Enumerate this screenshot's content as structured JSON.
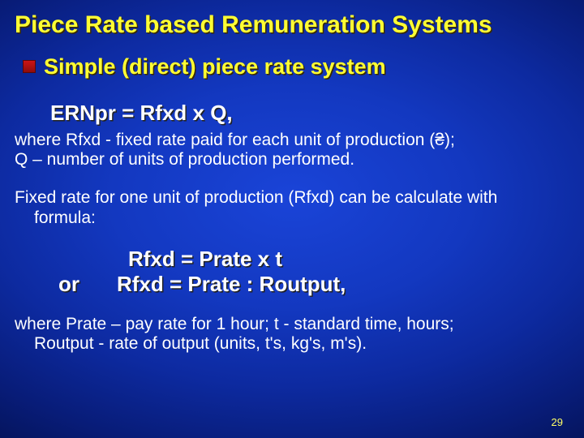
{
  "title": "Piece Rate based Remuneration Systems",
  "bullet_label": "Simple (direct) piece rate system",
  "formula_main": "ERNpr  =  Rfxd  x   Q,",
  "where1_line1": "where  Rfxd - fixed rate paid for each unit of production (₴);",
  "where1_line2": "Q – number of units of production performed.",
  "lead_in_line1": "Fixed rate for one unit of production (Rfxd) can be calculate with",
  "lead_in_line2": "formula:",
  "formula_rfxd1": "Rfxd  =  Prate  x t",
  "or_label": "or",
  "formula_rfxd2": "Rfxd  =  Prate  :  Routput,",
  "where2_line1": "where  Prate – pay rate for 1 hour; t - standard time, hours;",
  "where2_line2": "Routput  - rate of output (units, t's, kg's, m's).",
  "page_number": "29",
  "colors": {
    "yellow": "#ffff33",
    "white": "#ffffff",
    "bullet_red_top": "#d01515",
    "bullet_red_bottom": "#8a0c0c",
    "bg_center": "#1a44d8",
    "bg_edge": "#010a34"
  }
}
